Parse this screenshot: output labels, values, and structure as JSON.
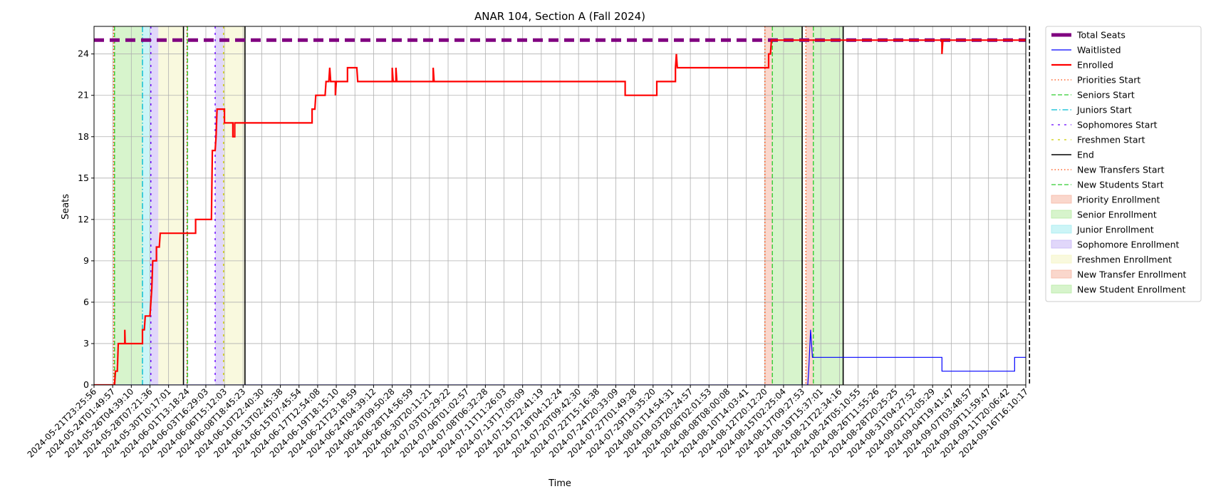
{
  "chart_data": {
    "type": "line",
    "title": "ANAR 104, Section A (Fall 2024)",
    "xlabel": "Time",
    "ylabel": "Seats",
    "ylim": [
      0,
      26
    ],
    "grid": true,
    "legend_position": "outside-right",
    "y_ticks": [
      0,
      3,
      6,
      9,
      12,
      15,
      18,
      21,
      24
    ],
    "x_ticks": [
      "2024-05-21T23:25:56",
      "2024-05-24T01:49:57",
      "2024-05-26T04:39:10",
      "2024-05-28T07:21:36",
      "2024-05-30T10:17:01",
      "2024-06-01T13:18:24",
      "2024-06-03T16:29:03",
      "2024-06-06T15:12:03",
      "2024-06-08T18:45:23",
      "2024-06-10T22:40:30",
      "2024-06-13T02:45:38",
      "2024-06-15T07:45:54",
      "2024-06-17T12:54:08",
      "2024-06-19T18:15:10",
      "2024-06-21T23:18:59",
      "2024-06-24T04:39:12",
      "2024-06-26T09:50:28",
      "2024-06-28T14:56:59",
      "2024-06-30T20:11:21",
      "2024-07-03T01:29:22",
      "2024-07-06T01:02:57",
      "2024-07-08T06:32:28",
      "2024-07-11T11:26:03",
      "2024-07-13T17:05:09",
      "2024-07-15T22:41:19",
      "2024-07-18T04:12:24",
      "2024-07-20T09:42:30",
      "2024-07-22T15:16:38",
      "2024-07-24T20:33:09",
      "2024-07-27T01:49:28",
      "2024-07-29T19:35:20",
      "2024-08-01T14:54:31",
      "2024-08-03T20:24:57",
      "2024-08-06T02:01:53",
      "2024-08-08T08:00:08",
      "2024-08-10T14:03:41",
      "2024-08-12T20:12:20",
      "2024-08-15T02:25:04",
      "2024-08-17T09:27:53",
      "2024-08-19T15:37:01",
      "2024-08-21T22:34:16",
      "2024-08-24T05:10:55",
      "2024-08-26T11:55:26",
      "2024-08-28T20:25:25",
      "2024-08-31T04:27:52",
      "2024-09-02T12:05:29",
      "2024-09-04T19:41:47",
      "2024-09-07T03:48:57",
      "2024-09-09T11:59:47",
      "2024-09-11T20:06:42",
      "2024-09-16T16:10:17"
    ],
    "x_range_index": [
      0,
      50
    ],
    "total_seats": 25,
    "series": [
      {
        "name": "Total Seats",
        "color": "#800080",
        "points": [
          [
            0,
            25
          ],
          [
            50.5,
            25
          ]
        ]
      },
      {
        "name": "Waitlisted",
        "color": "#0000ff",
        "points": [
          [
            0,
            0
          ],
          [
            38.3,
            0
          ],
          [
            38.35,
            1
          ],
          [
            38.45,
            4
          ],
          [
            38.55,
            2
          ],
          [
            45.5,
            2
          ],
          [
            45.5,
            1
          ],
          [
            49.4,
            1
          ],
          [
            49.4,
            2
          ],
          [
            50.2,
            2
          ],
          [
            50.2,
            0
          ]
        ]
      },
      {
        "name": "Enrolled",
        "color": "#ff0000",
        "points": [
          [
            0,
            0
          ],
          [
            1.1,
            0
          ],
          [
            1.15,
            1
          ],
          [
            1.25,
            1
          ],
          [
            1.3,
            3
          ],
          [
            1.65,
            3
          ],
          [
            1.65,
            4
          ],
          [
            1.67,
            3
          ],
          [
            2.6,
            3
          ],
          [
            2.6,
            4
          ],
          [
            2.7,
            4
          ],
          [
            2.75,
            5
          ],
          [
            3.0,
            5
          ],
          [
            3.1,
            7
          ],
          [
            3.15,
            9
          ],
          [
            3.35,
            9
          ],
          [
            3.35,
            10
          ],
          [
            3.5,
            10
          ],
          [
            3.55,
            11
          ],
          [
            5.45,
            11
          ],
          [
            5.45,
            12
          ],
          [
            6.3,
            12
          ],
          [
            6.35,
            17
          ],
          [
            6.5,
            17
          ],
          [
            6.55,
            18
          ],
          [
            6.6,
            20
          ],
          [
            7.0,
            20
          ],
          [
            7.0,
            19
          ],
          [
            7.45,
            19
          ],
          [
            7.45,
            18
          ],
          [
            7.55,
            18
          ],
          [
            7.55,
            19
          ],
          [
            11.7,
            19
          ],
          [
            11.7,
            20
          ],
          [
            11.85,
            20
          ],
          [
            11.9,
            21
          ],
          [
            12.4,
            21
          ],
          [
            12.45,
            22
          ],
          [
            12.6,
            22
          ],
          [
            12.65,
            23
          ],
          [
            12.7,
            22
          ],
          [
            12.95,
            22
          ],
          [
            12.95,
            21
          ],
          [
            13.0,
            22
          ],
          [
            13.6,
            22
          ],
          [
            13.6,
            23
          ],
          [
            14.1,
            23
          ],
          [
            14.15,
            22
          ],
          [
            16.0,
            22
          ],
          [
            16.0,
            23
          ],
          [
            16.05,
            22
          ],
          [
            16.2,
            22
          ],
          [
            16.2,
            23
          ],
          [
            16.25,
            22
          ],
          [
            18.2,
            22
          ],
          [
            18.2,
            23
          ],
          [
            18.25,
            22
          ],
          [
            28.5,
            22
          ],
          [
            28.5,
            21
          ],
          [
            30.2,
            21
          ],
          [
            30.2,
            22
          ],
          [
            31.2,
            22
          ],
          [
            31.2,
            23
          ],
          [
            31.25,
            24
          ],
          [
            31.3,
            23
          ],
          [
            36.2,
            23
          ],
          [
            36.2,
            24
          ],
          [
            36.3,
            24
          ],
          [
            36.35,
            25
          ],
          [
            45.5,
            25
          ],
          [
            45.5,
            24
          ],
          [
            45.55,
            25
          ],
          [
            50.0,
            25
          ]
        ]
      }
    ],
    "vertical_lines": [
      {
        "name": "Priorities Start",
        "x": 1.05,
        "color": "#ff4500",
        "dash": "1.5,3"
      },
      {
        "name": "Seniors Start",
        "x": 1.1,
        "color": "#32cd32",
        "dash": "6,3"
      },
      {
        "name": "Juniors Start",
        "x": 2.6,
        "color": "#00bcd4",
        "dash": "8,3,1.5,3"
      },
      {
        "name": "Sophomores Start",
        "x": 3.05,
        "color": "#6600ff",
        "dash": "3,6"
      },
      {
        "name": "End",
        "x": 4.8,
        "color": "#000000",
        "dash": ""
      },
      {
        "name": "Priorities Start",
        "x": 4.98,
        "color": "#ff4500",
        "dash": "1.5,3"
      },
      {
        "name": "Seniors Start",
        "x": 5.02,
        "color": "#32cd32",
        "dash": "6,3"
      },
      {
        "name": "Sophomores Start",
        "x": 6.5,
        "color": "#6600ff",
        "dash": "3,6"
      },
      {
        "name": "Freshmen Start",
        "x": 6.95,
        "color": "#cccc00",
        "dash": "3,6"
      },
      {
        "name": "End",
        "x": 8.1,
        "color": "#000000",
        "dash": ""
      },
      {
        "name": "New Transfers Start",
        "x": 36.0,
        "color": "#ff4500",
        "dash": "1.5,3"
      },
      {
        "name": "New Students Start",
        "x": 36.4,
        "color": "#32cd32",
        "dash": "6,3"
      },
      {
        "name": "End",
        "x": 38.0,
        "color": "#000000",
        "dash": ""
      },
      {
        "name": "New Transfers Start",
        "x": 38.2,
        "color": "#ff4500",
        "dash": "1.5,3"
      },
      {
        "name": "New Students Start",
        "x": 38.6,
        "color": "#32cd32",
        "dash": "6,3"
      },
      {
        "name": "End",
        "x": 40.2,
        "color": "#000000",
        "dash": ""
      },
      {
        "name": "End",
        "x": 50.2,
        "color": "#000000",
        "dash": "6,3"
      }
    ],
    "spans": [
      {
        "name": "Priority Enrollment",
        "x0": 1.05,
        "x1": 1.1,
        "color": "#f5b7a3"
      },
      {
        "name": "Senior Enrollment",
        "x0": 1.1,
        "x1": 2.6,
        "color": "#b7eba3"
      },
      {
        "name": "Junior Enrollment",
        "x0": 2.6,
        "x1": 3.05,
        "color": "#a3ecf0"
      },
      {
        "name": "Sophomore Enrollment",
        "x0": 3.05,
        "x1": 3.45,
        "color": "#c8b6f5"
      },
      {
        "name": "Freshmen Enrollment",
        "x0": 3.45,
        "x1": 4.8,
        "color": "#f4f4c2"
      },
      {
        "name": "Sophomore Enrollment",
        "x0": 6.5,
        "x1": 6.95,
        "color": "#c8b6f5"
      },
      {
        "name": "Freshmen Enrollment",
        "x0": 6.95,
        "x1": 8.1,
        "color": "#f4f4c2"
      },
      {
        "name": "New Transfer Enrollment",
        "x0": 36.0,
        "x1": 36.4,
        "color": "#f5b7a3"
      },
      {
        "name": "New Student Enrollment",
        "x0": 36.4,
        "x1": 38.0,
        "color": "#b7eba3"
      },
      {
        "name": "New Transfer Enrollment",
        "x0": 38.2,
        "x1": 38.6,
        "color": "#f5b7a3"
      },
      {
        "name": "New Student Enrollment",
        "x0": 38.6,
        "x1": 40.2,
        "color": "#b7eba3"
      }
    ],
    "legend": [
      {
        "label": "Total Seats",
        "kind": "line",
        "color": "#800080",
        "width": 5,
        "dash": ""
      },
      {
        "label": "Waitlisted",
        "kind": "line",
        "color": "#0000ff",
        "width": 1.2,
        "dash": ""
      },
      {
        "label": "Enrolled",
        "kind": "line",
        "color": "#ff0000",
        "width": 2.2,
        "dash": ""
      },
      {
        "label": "Priorities Start",
        "kind": "line",
        "color": "#ff4500",
        "width": 1.3,
        "dash": "1.5,3"
      },
      {
        "label": "Seniors Start",
        "kind": "line",
        "color": "#32cd32",
        "width": 1.3,
        "dash": "6,3"
      },
      {
        "label": "Juniors Start",
        "kind": "line",
        "color": "#00bcd4",
        "width": 1.3,
        "dash": "8,3,1.5,3"
      },
      {
        "label": "Sophomores Start",
        "kind": "line",
        "color": "#6600ff",
        "width": 1.3,
        "dash": "3,6"
      },
      {
        "label": "Freshmen Start",
        "kind": "line",
        "color": "#cccc00",
        "width": 1.3,
        "dash": "3,6"
      },
      {
        "label": "End",
        "kind": "line",
        "color": "#000000",
        "width": 1.5,
        "dash": ""
      },
      {
        "label": "New Transfers Start",
        "kind": "line",
        "color": "#ff4500",
        "width": 1.3,
        "dash": "1.5,3"
      },
      {
        "label": "New Students Start",
        "kind": "line",
        "color": "#32cd32",
        "width": 1.3,
        "dash": "6,3"
      },
      {
        "label": "Priority Enrollment",
        "kind": "patch",
        "color": "#f5b7a3"
      },
      {
        "label": "Senior Enrollment",
        "kind": "patch",
        "color": "#b7eba3"
      },
      {
        "label": "Junior Enrollment",
        "kind": "patch",
        "color": "#a3ecf0"
      },
      {
        "label": "Sophomore Enrollment",
        "kind": "patch",
        "color": "#c8b6f5"
      },
      {
        "label": "Freshmen Enrollment",
        "kind": "patch",
        "color": "#f4f4c2"
      },
      {
        "label": "New Transfer Enrollment",
        "kind": "patch",
        "color": "#f5b7a3"
      },
      {
        "label": "New Student Enrollment",
        "kind": "patch",
        "color": "#b7eba3"
      }
    ]
  }
}
